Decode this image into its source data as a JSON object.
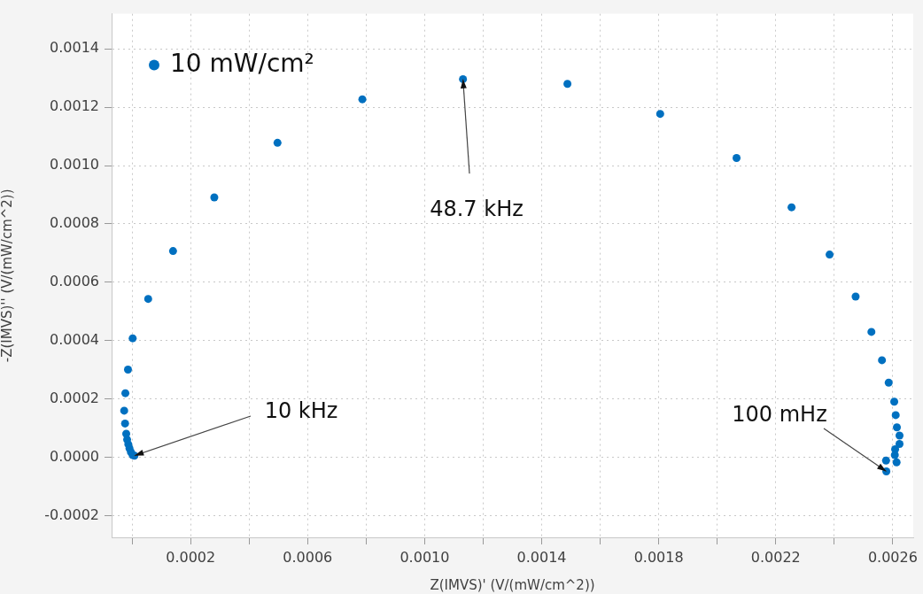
{
  "chart_data": {
    "type": "scatter",
    "xlabel": "Z(IMVS)' (V/(mW/cm^2))",
    "ylabel": "-Z(IMVS)'' (V/(mW/cm^2))",
    "xlim": [
      -7e-05,
      0.00267
    ],
    "ylim": [
      -0.000274,
      0.00152
    ],
    "xticks": [
      {
        "value": 0,
        "label": null
      },
      {
        "value": 0.0002,
        "label": "0.0002"
      },
      {
        "value": 0.0004,
        "label": null
      },
      {
        "value": 0.0006,
        "label": "0.0006"
      },
      {
        "value": 0.0008,
        "label": null
      },
      {
        "value": 0.001,
        "label": "0.0010"
      },
      {
        "value": 0.0012,
        "label": null
      },
      {
        "value": 0.0014,
        "label": "0.0014"
      },
      {
        "value": 0.0016,
        "label": null
      },
      {
        "value": 0.0018,
        "label": "0.0018"
      },
      {
        "value": 0.002,
        "label": null
      },
      {
        "value": 0.0022,
        "label": "0.0022"
      },
      {
        "value": 0.0024,
        "label": null
      },
      {
        "value": 0.0026,
        "label": "0.0026"
      }
    ],
    "yticks": [
      {
        "value": -0.0002,
        "label": "-0.0002"
      },
      {
        "value": 0,
        "label": "0.0000"
      },
      {
        "value": 0.0002,
        "label": "0.0002"
      },
      {
        "value": 0.0004,
        "label": "0.0004"
      },
      {
        "value": 0.0006,
        "label": "0.0006"
      },
      {
        "value": 0.0008,
        "label": "0.0008"
      },
      {
        "value": 0.001,
        "label": "0.0010"
      },
      {
        "value": 0.0012,
        "label": "0.0012"
      },
      {
        "value": 0.0014,
        "label": "0.0014"
      }
    ],
    "grid": true,
    "legend": "top left",
    "marker": "circle",
    "series": [
      {
        "name": "10 mW/cm²",
        "color": "#0070c0",
        "x": [
          8e-06,
          2e-06,
          -4e-06,
          -9e-06,
          -1.3e-05,
          -1.7e-05,
          -2e-05,
          -2.4e-05,
          -2.7e-05,
          -2.3e-05,
          -1.4e-05,
          2e-06,
          5.5e-05,
          0.00014,
          0.000281,
          0.000497,
          0.000787,
          0.001131,
          0.001488,
          0.001805,
          0.002066,
          0.002254,
          0.002384,
          0.002473,
          0.002527,
          0.002563,
          0.002586,
          0.002605,
          0.00261,
          0.002614,
          0.002623,
          0.002623,
          0.002608,
          0.002607,
          0.002613,
          0.002577,
          0.002578
        ],
        "values": [
          6e-06,
          8e-06,
          1.8e-05,
          3.1e-05,
          4.5e-05,
          6.1e-05,
          8.1e-05,
          0.000116,
          0.00016,
          0.00022,
          0.000301,
          0.000408,
          0.000543,
          0.000707,
          0.000891,
          0.001078,
          0.001227,
          0.001296,
          0.00128,
          0.001177,
          0.001026,
          0.000857,
          0.000695,
          0.000551,
          0.00043,
          0.000333,
          0.000256,
          0.000191,
          0.000145,
          0.000103,
          7.5e-05,
          4.6e-05,
          2.8e-05,
          8e-06,
          -1.7e-05,
          -1.1e-05,
          -4.8e-05
        ]
      }
    ],
    "annotations": [
      {
        "text": "48.7 kHz",
        "x": 0.001131,
        "y": 0.001296
      },
      {
        "text": "10 kHz",
        "x": 8e-06,
        "y": 6e-06
      },
      {
        "text": "100 mHz",
        "x": 0.002578,
        "y": -4.8e-05
      }
    ]
  }
}
